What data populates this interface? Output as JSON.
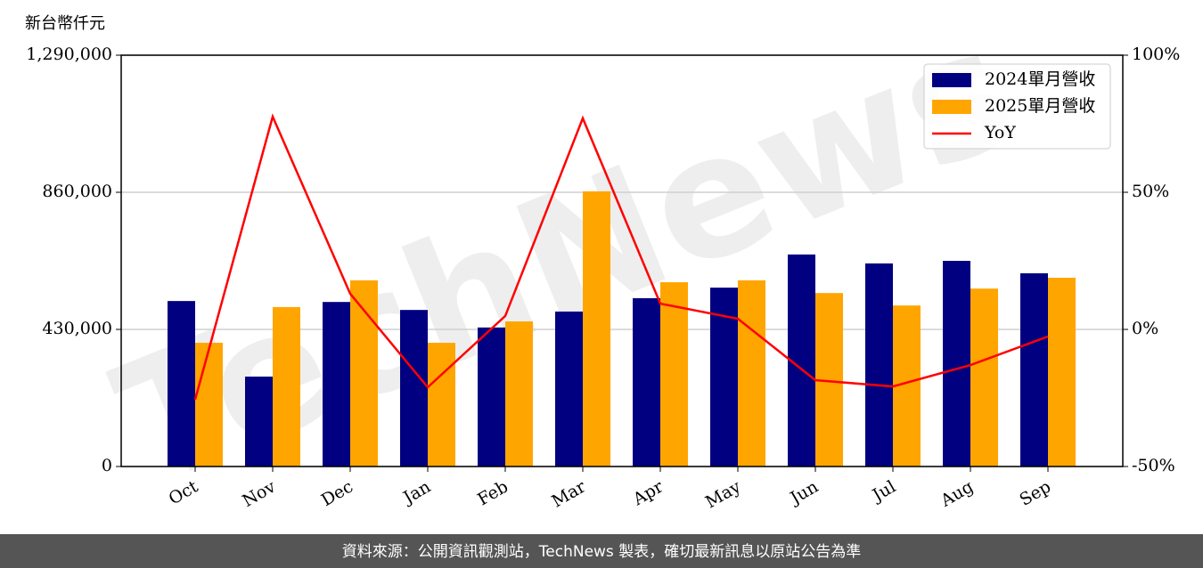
{
  "chart_data": {
    "type": "bar",
    "ylabel": "新台幣仟元",
    "watermark": "TechNews",
    "source": "資料來源：公開資訊觀測站，TechNews 製表，確切最新訊息以原站公告為準",
    "categories": [
      "Oct",
      "Nov",
      "Dec",
      "Jan",
      "Feb",
      "Mar",
      "Apr",
      "May",
      "Jun",
      "Jul",
      "Aug",
      "Sep"
    ],
    "series": [
      {
        "name": "2024單月營收",
        "color": "#000080",
        "values": [
          519000,
          282000,
          516000,
          491000,
          436000,
          486000,
          528000,
          561000,
          665000,
          637000,
          645000,
          606000
        ]
      },
      {
        "name": "2025單月營收",
        "color": "#ffa500",
        "values": [
          388000,
          500000,
          584000,
          388000,
          455000,
          863000,
          578000,
          584000,
          544000,
          505000,
          558000,
          592000
        ]
      },
      {
        "name": "YoY",
        "color": "#ff0000",
        "type": "line",
        "axis": "y2",
        "values": [
          -25.6,
          77.6,
          13,
          -21.1,
          4.9,
          77,
          9.4,
          3.9,
          -18.5,
          -20.8,
          -13,
          -2.6
        ]
      }
    ],
    "ylim": [
      0,
      1290000
    ],
    "yticks": [
      {
        "value": 0,
        "label": "0"
      },
      {
        "value": 430000,
        "label": "430,000"
      },
      {
        "value": 860000,
        "label": "860,000"
      },
      {
        "value": 1290000,
        "label": "1,290,000"
      }
    ],
    "y2lim": [
      -50,
      100
    ],
    "y2ticks": [
      {
        "value": -50,
        "label": "-50%"
      },
      {
        "value": 0,
        "label": "0%"
      },
      {
        "value": 50,
        "label": "50%"
      },
      {
        "value": 100,
        "label": "100%"
      }
    ],
    "grid": true,
    "legend": "upper right"
  }
}
